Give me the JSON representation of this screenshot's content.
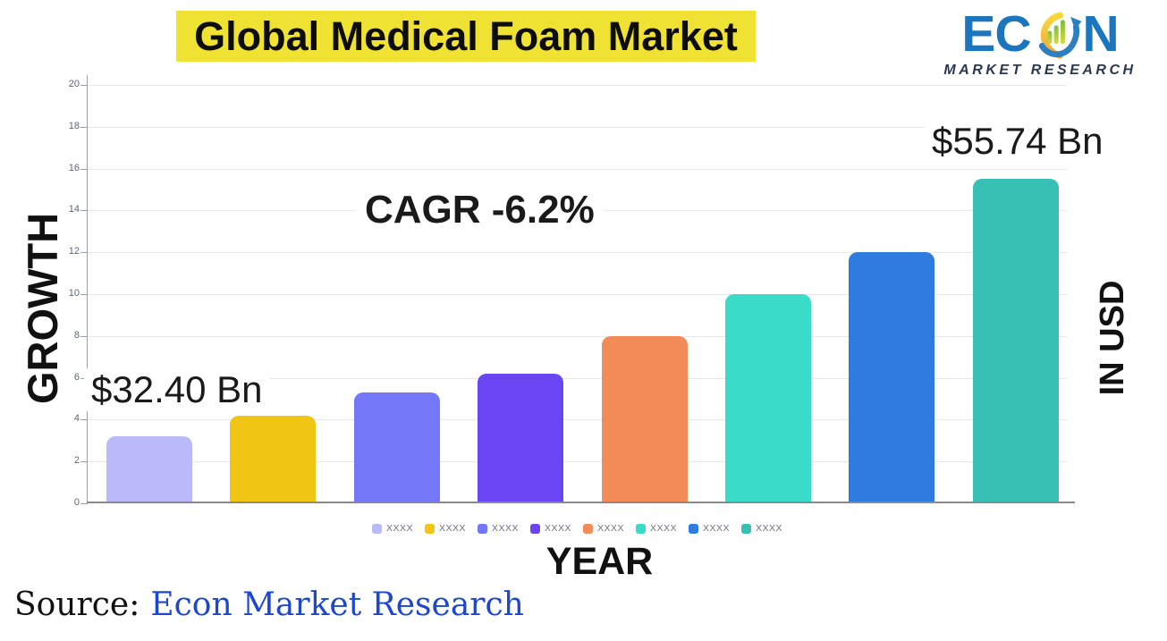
{
  "title": {
    "text": "Global Medical Foam Market",
    "highlight_color": "#f0e232"
  },
  "logo": {
    "brand_prefix": "EC",
    "brand_suffix": "N",
    "subtitle": "MARKET RESEARCH",
    "brand_color": "#1b76bd",
    "subtitle_color": "#2b3850"
  },
  "chart_data": {
    "type": "bar",
    "title": "Global Medical Foam Market",
    "xlabel": "YEAR",
    "ylabel_left": "GROWTH",
    "ylabel_right": "IN USD",
    "ylim": [
      0,
      20
    ],
    "yticks": [
      0,
      2,
      4,
      6,
      8,
      10,
      12,
      14,
      16,
      18,
      20
    ],
    "grid": true,
    "categories": [
      "XXXX",
      "XXXX",
      "XXXX",
      "XXXX",
      "XXXX",
      "XXXX",
      "XXXX",
      "XXXX"
    ],
    "values": [
      3.2,
      4.2,
      5.3,
      6.2,
      8.0,
      10.0,
      12.0,
      15.5
    ],
    "bar_colors": [
      "#babafa",
      "#f1c513",
      "#7478f8",
      "#6a45f3",
      "#f18b58",
      "#3adcc9",
      "#2e7ce0",
      "#37c0b4"
    ],
    "annotations": [
      {
        "text": "CAGR -6.2%"
      },
      {
        "text": "$32.40 Bn",
        "target": "first-bar"
      },
      {
        "text": "$55.74 Bn",
        "target": "last-bar"
      }
    ],
    "legend": {
      "position": "bottom",
      "labels": [
        "XXXX",
        "XXXX",
        "XXXX",
        "XXXX",
        "XXXX",
        "XXXX",
        "XXXX",
        "XXXX"
      ]
    }
  },
  "source": {
    "prefix": "Source:",
    "link_text": "Econ Market Research",
    "link_color": "#1d47cc"
  }
}
